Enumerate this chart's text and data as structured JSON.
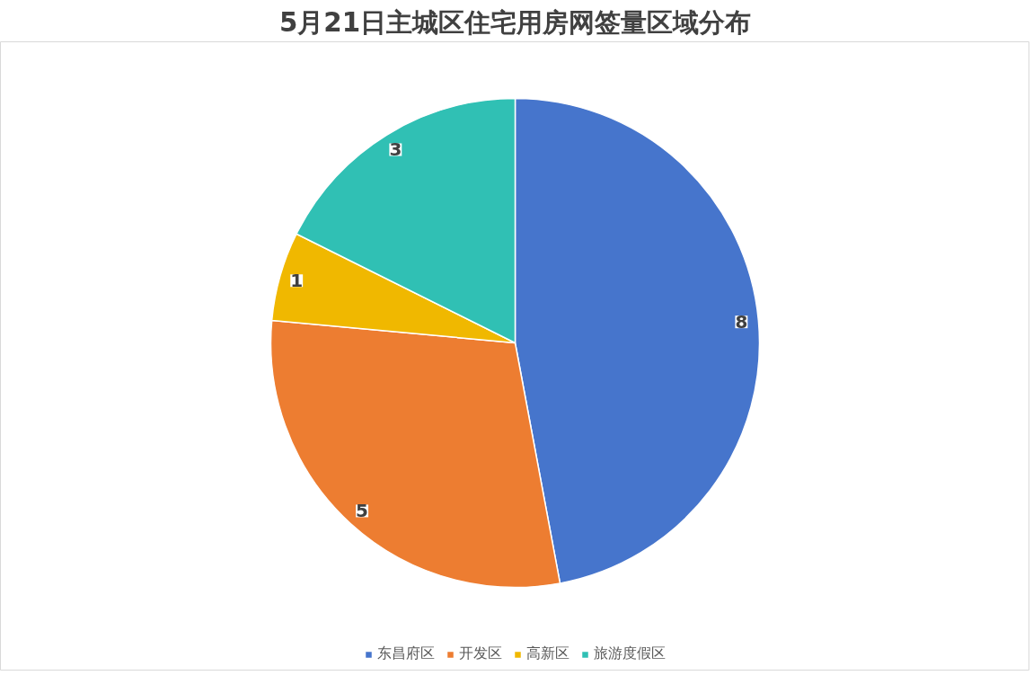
{
  "chart_data": {
    "type": "pie",
    "title": "5月21日主城区住宅用房网签量区域分布",
    "categories": [
      "东昌府区",
      "开发区",
      "高新区",
      "旅游度假区"
    ],
    "values": [
      8,
      5,
      1,
      3
    ],
    "colors": [
      "#4675cc",
      "#ed7d31",
      "#f0b800",
      "#30c0b4"
    ],
    "data_labels": true,
    "legend": "bottom"
  }
}
